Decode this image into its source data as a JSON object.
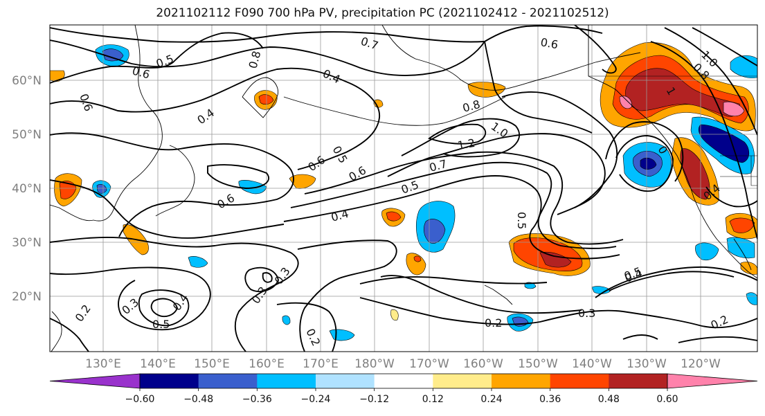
{
  "title": "2021102112 F090 700 hPa PV, precipitation PC (2021102412 - 2021102512)",
  "map": {
    "lat_labels": [
      "60°N",
      "50°N",
      "40°N",
      "30°N",
      "20°N"
    ],
    "lon_labels": [
      "130°E",
      "140°E",
      "150°E",
      "160°E",
      "170°E",
      "180°W",
      "170°W",
      "160°W",
      "150°W",
      "140°W",
      "130°W",
      "120°W"
    ],
    "contour_labels": [
      "0.7",
      "0.6",
      "0.5",
      "0.6",
      "0.8",
      "0.4",
      "0.6",
      "0.4",
      "0.5",
      "0.6",
      "0.6",
      "0.8",
      "1.0",
      "1.2",
      "0.7",
      "0.5",
      "0.6",
      "0.4",
      "0.5",
      "0.3",
      "0.3",
      "0.4",
      "0.3",
      "0.5",
      "0.4",
      "0.2",
      "0.2",
      "0.3",
      "0.2",
      "0.5",
      "0.4",
      "0.2",
      "1.0",
      "0.8",
      "1",
      "0"
    ]
  },
  "colorbar": {
    "tick_labels": [
      "−0.60",
      "−0.48",
      "−0.36",
      "−0.24",
      "−0.12",
      "0.12",
      "0.24",
      "0.36",
      "0.48",
      "0.60"
    ],
    "colors": [
      "#9932cc",
      "#00008b",
      "#3a5fcd",
      "#00bfff",
      "#b0e2ff",
      "#ffffff",
      "#ffec8b",
      "#ffa500",
      "#ff4500",
      "#b22222",
      "#ff82ab"
    ]
  }
}
